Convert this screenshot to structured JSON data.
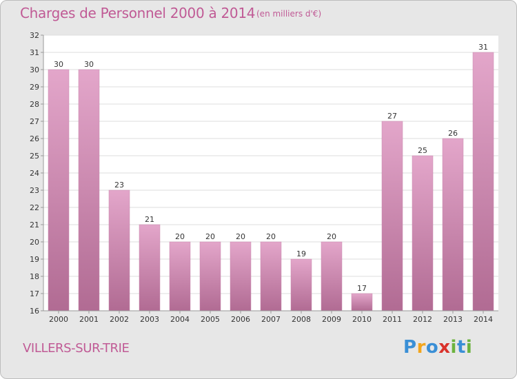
{
  "title": "Charges de Personnel 2000 à 2014",
  "subtitle": "(en milliers d'€)",
  "town": "VILLERS-SUR-TRIE",
  "logo": {
    "letters": [
      "P",
      "r",
      "o",
      "x",
      "i",
      "t",
      "i"
    ],
    "colors": [
      "#3a8fd6",
      "#f2a51c",
      "#3a8fd6",
      "#d9322b",
      "#6cb33f",
      "#3a8fd6",
      "#6cb33f"
    ]
  },
  "chart_data": {
    "type": "bar",
    "categories": [
      "2000",
      "2001",
      "2002",
      "2003",
      "2004",
      "2005",
      "2006",
      "2007",
      "2008",
      "2009",
      "2010",
      "2011",
      "2012",
      "2013",
      "2014"
    ],
    "values": [
      30,
      30,
      23,
      21,
      20,
      20,
      20,
      20,
      19,
      20,
      17,
      27,
      25,
      26,
      31
    ],
    "ylim": [
      16,
      32
    ],
    "yticks": [
      16,
      17,
      18,
      19,
      20,
      21,
      22,
      23,
      24,
      25,
      26,
      27,
      28,
      29,
      30,
      31,
      32
    ],
    "grid": true,
    "bar_color": "#d98bb8",
    "xlabel": "",
    "ylabel": ""
  }
}
